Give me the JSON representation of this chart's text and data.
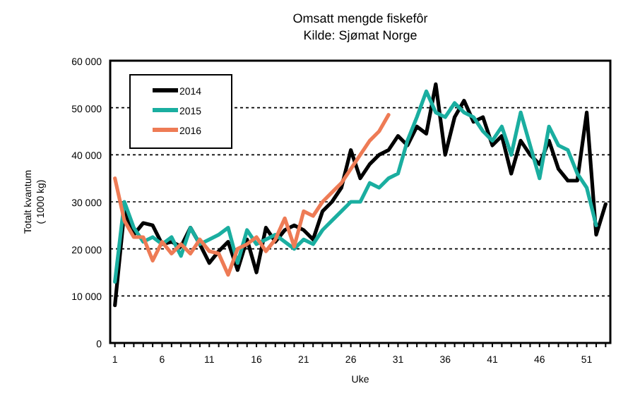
{
  "chart_data": {
    "type": "line",
    "title": "Omsatt mengde fiskefôr",
    "subtitle": "Kilde: Sjømat Norge",
    "xlabel": "Uke",
    "ylabel": "Totalt kvantum ( 1000 kg)",
    "x": [
      1,
      2,
      3,
      4,
      5,
      6,
      7,
      8,
      9,
      10,
      11,
      12,
      13,
      14,
      15,
      16,
      17,
      18,
      19,
      20,
      21,
      22,
      23,
      24,
      25,
      26,
      27,
      28,
      29,
      30,
      31,
      32,
      33,
      34,
      35,
      36,
      37,
      38,
      39,
      40,
      41,
      42,
      43,
      44,
      45,
      46,
      47,
      48,
      49,
      50,
      51,
      52,
      53
    ],
    "series": [
      {
        "name": "2014",
        "color": "#000000",
        "values": [
          8000,
          28000,
          23000,
          25500,
          25000,
          21000,
          21500,
          20500,
          24500,
          21000,
          17000,
          19500,
          21500,
          15500,
          22000,
          15000,
          24500,
          21500,
          24000,
          25000,
          24000,
          22000,
          28000,
          30000,
          33000,
          41000,
          35000,
          38000,
          40000,
          41000,
          44000,
          42000,
          46000,
          44500,
          55000,
          40000,
          48000,
          51500,
          47000,
          48000,
          42000,
          44000,
          36000,
          43000,
          40000,
          38000,
          43000,
          37000,
          34500,
          34500,
          49000,
          23000,
          29500
        ]
      },
      {
        "name": "2015",
        "color": "#1aaea0",
        "values": [
          13000,
          30000,
          24500,
          21500,
          22500,
          21000,
          22500,
          18500,
          24500,
          21000,
          22000,
          23000,
          24500,
          17000,
          24000,
          21000,
          22000,
          23000,
          21500,
          20000,
          22000,
          21000,
          24000,
          26000,
          28000,
          30000,
          30000,
          34000,
          33000,
          35000,
          36000,
          43000,
          48000,
          53500,
          49000,
          48000,
          51000,
          49000,
          48000,
          45000,
          43000,
          46000,
          40000,
          49000,
          42000,
          35000,
          46000,
          42000,
          41000,
          36000,
          33000,
          25000,
          null
        ]
      },
      {
        "name": "2016",
        "color": "#ee7b55",
        "values": [
          35000,
          26000,
          22500,
          22500,
          17500,
          21500,
          19000,
          21000,
          19000,
          22000,
          19500,
          19000,
          14500,
          20000,
          21000,
          22500,
          19500,
          22000,
          26500,
          20500,
          28000,
          27000,
          30000,
          32000,
          34000,
          37000,
          40000,
          43000,
          45000,
          48500,
          null,
          null,
          null,
          null,
          null,
          null,
          null,
          null,
          null,
          null,
          null,
          null,
          null,
          null,
          null,
          null,
          null,
          null,
          null,
          null,
          null,
          null,
          null
        ]
      }
    ],
    "xlim": [
      0.5,
      53.5
    ],
    "xticks": [
      1,
      {
        "value": 2,
        "label": null
      },
      {
        "value": 3,
        "label": null
      },
      {
        "value": 4,
        "label": null
      },
      {
        "value": 5,
        "label": null
      },
      6,
      {
        "value": 7,
        "label": null
      },
      {
        "value": 8,
        "label": null
      },
      {
        "value": 9,
        "label": null
      },
      {
        "value": 10,
        "label": null
      },
      11,
      {
        "value": 12,
        "label": null
      },
      {
        "value": 13,
        "label": null
      },
      {
        "value": 14,
        "label": null
      },
      {
        "value": 15,
        "label": null
      },
      16,
      {
        "value": 17,
        "label": null
      },
      {
        "value": 18,
        "label": null
      },
      {
        "value": 19,
        "label": null
      },
      {
        "value": 20,
        "label": null
      },
      21,
      {
        "value": 22,
        "label": null
      },
      {
        "value": 23,
        "label": null
      },
      {
        "value": 24,
        "label": null
      },
      {
        "value": 25,
        "label": null
      },
      26,
      {
        "value": 27,
        "label": null
      },
      {
        "value": 28,
        "label": null
      },
      {
        "value": 29,
        "label": null
      },
      {
        "value": 30,
        "label": null
      },
      31,
      {
        "value": 32,
        "label": null
      },
      {
        "value": 33,
        "label": null
      },
      {
        "value": 34,
        "label": null
      },
      {
        "value": 35,
        "label": null
      },
      36,
      {
        "value": 37,
        "label": null
      },
      {
        "value": 38,
        "label": null
      },
      {
        "value": 39,
        "label": null
      },
      {
        "value": 40,
        "label": null
      },
      41,
      {
        "value": 42,
        "label": null
      },
      {
        "value": 43,
        "label": null
      },
      {
        "value": 44,
        "label": null
      },
      {
        "value": 45,
        "label": null
      },
      46,
      {
        "value": 47,
        "label": null
      },
      {
        "value": 48,
        "label": null
      },
      {
        "value": 49,
        "label": null
      },
      {
        "value": 50,
        "label": null
      },
      51,
      {
        "value": 52,
        "label": null
      },
      {
        "value": 53,
        "label": null
      }
    ],
    "ylim": [
      0,
      60000
    ],
    "yticks": [
      {
        "value": 0,
        "label": "0"
      },
      {
        "value": 10000,
        "label": "10 000"
      },
      {
        "value": 20000,
        "label": "20 000"
      },
      {
        "value": 30000,
        "label": "30 000"
      },
      {
        "value": 40000,
        "label": "40 000"
      },
      {
        "value": 50000,
        "label": "50 000"
      },
      {
        "value": 60000,
        "label": "60 000"
      }
    ],
    "grid": "y",
    "legend": "top left",
    "marker": "none",
    "line_style": "solid"
  }
}
